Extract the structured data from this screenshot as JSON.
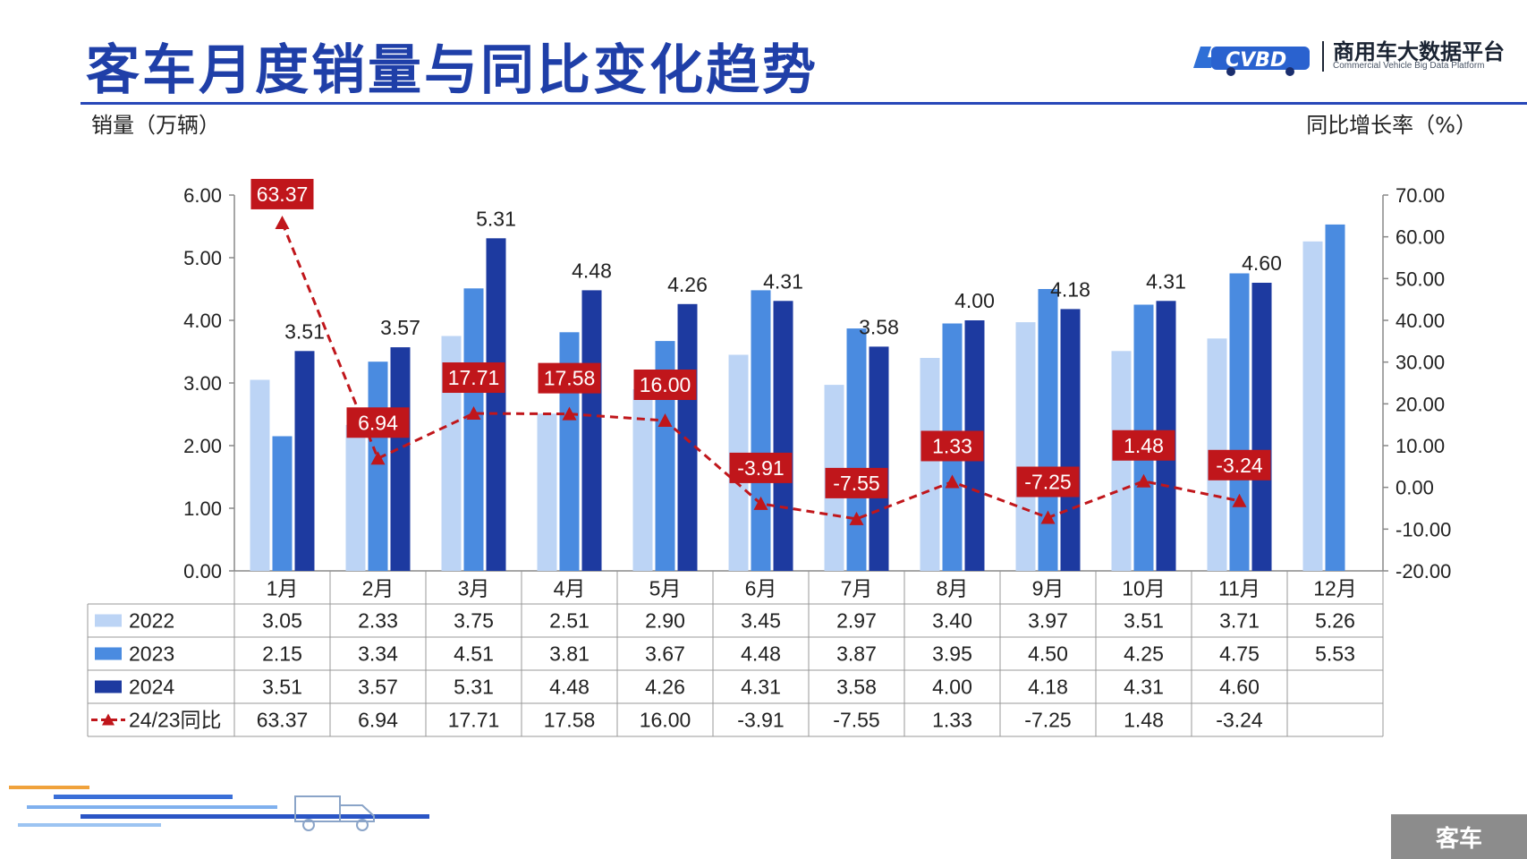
{
  "header": {
    "title": "客车月度销量与同比变化趋势",
    "brand_name": "商用车大数据平台",
    "brand_sub": "Commercial Vehicle Big Data Platform",
    "brand_logo_text": "CVBD"
  },
  "chart_data": {
    "type": "bar",
    "ylabel": "销量（万辆）",
    "y2label": "同比增长率（%）",
    "ylim": [
      0,
      6
    ],
    "y2lim": [
      -20,
      70
    ],
    "ytick_labels": [
      "0.00",
      "1.00",
      "2.00",
      "3.00",
      "4.00",
      "5.00",
      "6.00"
    ],
    "y2tick_labels": [
      "-20.00",
      "-10.00",
      "0.00",
      "10.00",
      "20.00",
      "30.00",
      "40.00",
      "50.00",
      "60.00",
      "70.00"
    ],
    "categories": [
      "1月",
      "2月",
      "3月",
      "4月",
      "5月",
      "6月",
      "7月",
      "8月",
      "9月",
      "10月",
      "11月",
      "12月"
    ],
    "series": [
      {
        "name": "2022",
        "color": "#bcd4f5",
        "values": [
          3.05,
          2.33,
          3.75,
          2.51,
          2.9,
          3.45,
          2.97,
          3.4,
          3.97,
          3.51,
          3.71,
          5.26
        ],
        "labels": [
          "3.05",
          "2.33",
          "3.75",
          "2.51",
          "2.90",
          "3.45",
          "2.97",
          "3.40",
          "3.97",
          "3.51",
          "3.71",
          "5.26"
        ]
      },
      {
        "name": "2023",
        "color": "#4a8be0",
        "values": [
          2.15,
          3.34,
          4.51,
          3.81,
          3.67,
          4.48,
          3.87,
          3.95,
          4.5,
          4.25,
          4.75,
          5.53
        ],
        "labels": [
          "2.15",
          "3.34",
          "4.51",
          "3.81",
          "3.67",
          "4.48",
          "3.87",
          "3.95",
          "4.50",
          "4.25",
          "4.75",
          "5.53"
        ]
      },
      {
        "name": "2024",
        "color": "#1d3aa0",
        "values": [
          3.51,
          3.57,
          5.31,
          4.48,
          4.26,
          4.31,
          3.58,
          4.0,
          4.18,
          4.31,
          4.6,
          null
        ],
        "labels": [
          "3.51",
          "3.57",
          "5.31",
          "4.48",
          "4.26",
          "4.31",
          "3.58",
          "4.00",
          "4.18",
          "4.31",
          "4.60",
          ""
        ]
      }
    ],
    "line": {
      "name": "24/23同比",
      "color": "#c0161b",
      "axis": "right",
      "values": [
        63.37,
        6.94,
        17.71,
        17.58,
        16.0,
        -3.91,
        -7.55,
        1.33,
        -7.25,
        1.48,
        -3.24,
        null
      ],
      "labels": [
        "63.37",
        "6.94",
        "17.71",
        "17.58",
        "16.00",
        "-3.91",
        "-7.55",
        "1.33",
        "-7.25",
        "1.48",
        "-3.24",
        ""
      ]
    },
    "grid": false,
    "legend": "table-bottom"
  },
  "footer": {
    "badge": "客车"
  }
}
